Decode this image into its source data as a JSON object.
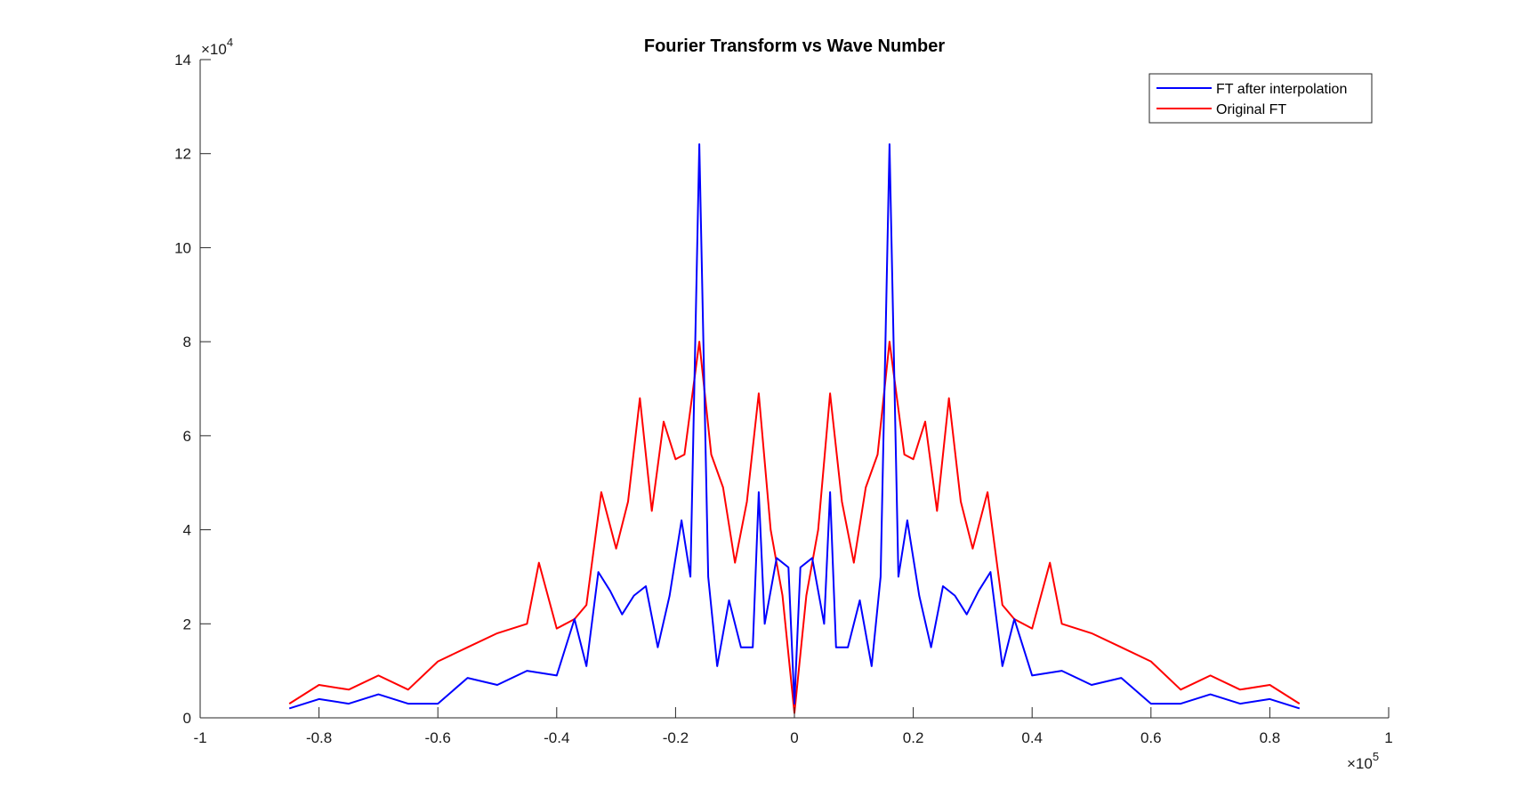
{
  "chart_data": {
    "type": "line",
    "title": "Fourier Transform vs Wave Number",
    "xlabel": "",
    "ylabel": "",
    "xlim": [
      -100000,
      100000
    ],
    "ylim": [
      0,
      140000
    ],
    "x_ticks": [
      -1,
      -0.8,
      -0.6,
      -0.4,
      -0.2,
      0,
      0.2,
      0.4,
      0.6,
      0.8,
      1
    ],
    "x_tick_labels": [
      "-1",
      "-0.8",
      "-0.6",
      "-0.4",
      "-0.2",
      "0",
      "0.2",
      "0.4",
      "0.6",
      "0.8",
      "1"
    ],
    "y_ticks": [
      0,
      2,
      4,
      6,
      8,
      10,
      12,
      14
    ],
    "y_tick_labels": [
      "0",
      "2",
      "4",
      "6",
      "8",
      "10",
      "12",
      "14"
    ],
    "x_multiplier_label": "×10",
    "x_multiplier_exp": "5",
    "y_multiplier_label": "×10",
    "y_multiplier_exp": "4",
    "grid": false,
    "legend_position": "top-right",
    "series": [
      {
        "name": "FT after interpolation",
        "color": "#0000ff",
        "x": [
          -85000,
          -80000,
          -75000,
          -70000,
          -65000,
          -60000,
          -55000,
          -50000,
          -45000,
          -40000,
          -37000,
          -35000,
          -33000,
          -31000,
          -29000,
          -27000,
          -25000,
          -23000,
          -21000,
          -19000,
          -17500,
          -16000,
          -14500,
          -13000,
          -11000,
          -9000,
          -7000,
          -6000,
          -5000,
          -3000,
          -1000,
          0,
          1000,
          3000,
          5000,
          6000,
          7000,
          9000,
          11000,
          13000,
          14500,
          16000,
          17500,
          19000,
          21000,
          23000,
          25000,
          27000,
          29000,
          31000,
          33000,
          35000,
          37000,
          40000,
          45000,
          50000,
          55000,
          60000,
          65000,
          70000,
          75000,
          80000,
          85000
        ],
        "y": [
          2000,
          4000,
          3000,
          5000,
          3000,
          3000,
          8500,
          7000,
          10000,
          9000,
          21000,
          11000,
          31000,
          27000,
          22000,
          26000,
          28000,
          15000,
          26000,
          42000,
          30000,
          122000,
          30000,
          11000,
          25000,
          15000,
          15000,
          48000,
          20000,
          34000,
          32000,
          3000,
          32000,
          34000,
          20000,
          48000,
          15000,
          15000,
          25000,
          11000,
          30000,
          122000,
          30000,
          42000,
          26000,
          15000,
          28000,
          26000,
          22000,
          27000,
          31000,
          11000,
          21000,
          9000,
          10000,
          7000,
          8500,
          3000,
          3000,
          5000,
          3000,
          4000,
          2000
        ]
      },
      {
        "name": "Original FT",
        "color": "#ff0000",
        "x": [
          -85000,
          -80000,
          -75000,
          -70000,
          -65000,
          -60000,
          -55000,
          -50000,
          -45000,
          -43000,
          -40000,
          -37000,
          -35000,
          -32500,
          -30000,
          -28000,
          -26000,
          -24000,
          -22000,
          -20000,
          -18500,
          -16000,
          -14000,
          -12000,
          -10000,
          -8000,
          -6000,
          -4000,
          -2000,
          0,
          2000,
          4000,
          6000,
          8000,
          10000,
          12000,
          14000,
          16000,
          18500,
          20000,
          22000,
          24000,
          26000,
          28000,
          30000,
          32500,
          35000,
          37000,
          40000,
          43000,
          45000,
          50000,
          55000,
          60000,
          65000,
          70000,
          75000,
          80000,
          85000
        ],
        "y": [
          3000,
          7000,
          6000,
          9000,
          6000,
          12000,
          15000,
          18000,
          20000,
          33000,
          19000,
          21000,
          24000,
          48000,
          36000,
          46000,
          68000,
          44000,
          63000,
          55000,
          56000,
          80000,
          56000,
          49000,
          33000,
          46000,
          69000,
          40000,
          26000,
          1000,
          26000,
          40000,
          69000,
          46000,
          33000,
          49000,
          56000,
          80000,
          56000,
          55000,
          63000,
          44000,
          68000,
          46000,
          36000,
          48000,
          24000,
          21000,
          19000,
          33000,
          20000,
          18000,
          15000,
          12000,
          6000,
          9000,
          6000,
          7000,
          3000
        ]
      }
    ]
  }
}
